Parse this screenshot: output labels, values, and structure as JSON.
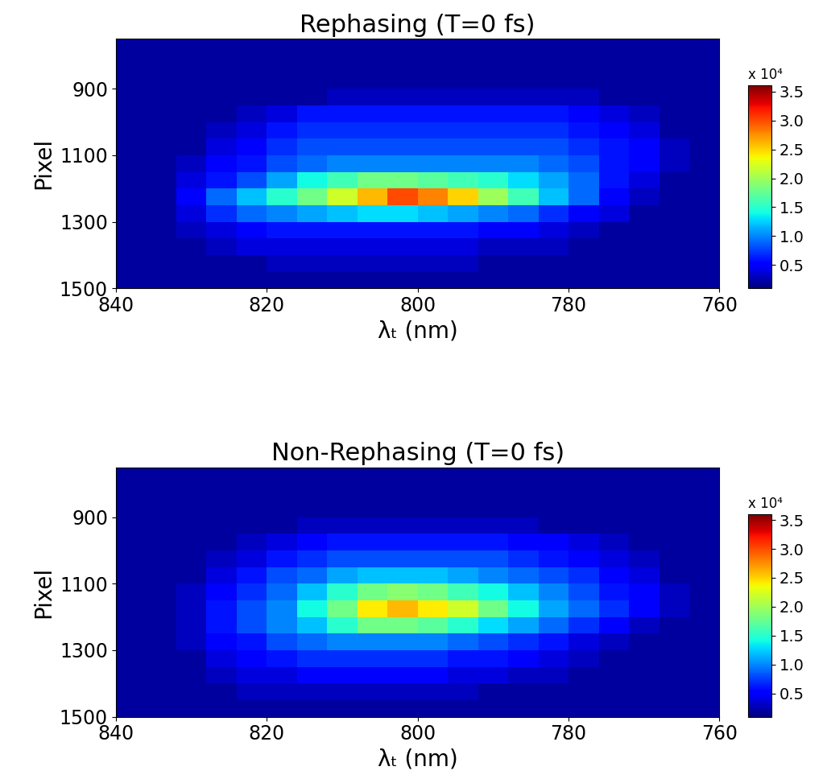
{
  "chart_data": [
    {
      "type": "heatmap",
      "title": "Rephasing (T=0 fs)",
      "x_label": "λₜ (nm)",
      "y_label": "Pixel",
      "xlim": [
        840,
        760
      ],
      "ylim": [
        1500,
        750
      ],
      "xticks": [
        840,
        820,
        800,
        780,
        760
      ],
      "yticks": [
        900,
        1100,
        1300,
        1500
      ],
      "x_edges": [
        840,
        836,
        832,
        828,
        824,
        820,
        816,
        812,
        808,
        804,
        800,
        796,
        792,
        788,
        784,
        780,
        776,
        772,
        768,
        764,
        760
      ],
      "y_edges": [
        750,
        800,
        850,
        900,
        950,
        1000,
        1050,
        1100,
        1150,
        1200,
        1250,
        1300,
        1350,
        1400,
        1450,
        1500
      ],
      "cells": [
        [
          0.2,
          0.2,
          0.2,
          0.2,
          0.2,
          0.2,
          0.2,
          0.2,
          0.2,
          0.2,
          0.2,
          0.2,
          0.2,
          0.2,
          0.2,
          0.2,
          0.2,
          0.2,
          0.2,
          0.2
        ],
        [
          0.2,
          0.2,
          0.2,
          0.2,
          0.2,
          0.2,
          0.2,
          0.2,
          0.2,
          0.2,
          0.2,
          0.2,
          0.2,
          0.2,
          0.2,
          0.2,
          0.2,
          0.2,
          0.2,
          0.2
        ],
        [
          0.2,
          0.2,
          0.2,
          0.2,
          0.2,
          0.2,
          0.2,
          0.2,
          0.2,
          0.2,
          0.2,
          0.2,
          0.2,
          0.2,
          0.2,
          0.2,
          0.2,
          0.2,
          0.2,
          0.2
        ],
        [
          0.2,
          0.2,
          0.2,
          0.2,
          0.2,
          0.2,
          0.2,
          0.3,
          0.3,
          0.3,
          0.3,
          0.3,
          0.3,
          0.3,
          0.3,
          0.3,
          0.2,
          0.2,
          0.2,
          0.2
        ],
        [
          0.2,
          0.2,
          0.2,
          0.2,
          0.3,
          0.4,
          0.6,
          0.6,
          0.6,
          0.6,
          0.6,
          0.6,
          0.6,
          0.6,
          0.6,
          0.5,
          0.4,
          0.3,
          0.2,
          0.2
        ],
        [
          0.2,
          0.2,
          0.2,
          0.3,
          0.4,
          0.6,
          0.7,
          0.7,
          0.7,
          0.7,
          0.7,
          0.7,
          0.7,
          0.7,
          0.7,
          0.6,
          0.5,
          0.4,
          0.2,
          0.2
        ],
        [
          0.2,
          0.2,
          0.2,
          0.4,
          0.5,
          0.7,
          0.8,
          0.8,
          0.8,
          0.8,
          0.8,
          0.8,
          0.8,
          0.8,
          0.8,
          0.7,
          0.6,
          0.5,
          0.3,
          0.2
        ],
        [
          0.2,
          0.2,
          0.3,
          0.5,
          0.6,
          0.8,
          0.9,
          1.0,
          1.0,
          1.0,
          1.0,
          1.0,
          1.0,
          1.0,
          0.9,
          0.8,
          0.6,
          0.5,
          0.3,
          0.2
        ],
        [
          0.2,
          0.2,
          0.4,
          0.6,
          0.8,
          1.1,
          1.4,
          1.6,
          1.8,
          1.8,
          1.7,
          1.6,
          1.5,
          1.3,
          1.1,
          0.9,
          0.6,
          0.4,
          0.2,
          0.2
        ],
        [
          0.2,
          0.2,
          0.5,
          0.9,
          1.2,
          1.5,
          1.8,
          2.2,
          2.6,
          3.0,
          2.8,
          2.5,
          2.0,
          1.6,
          1.2,
          0.9,
          0.5,
          0.3,
          0.2,
          0.2
        ],
        [
          0.2,
          0.2,
          0.4,
          0.7,
          0.9,
          1.0,
          1.1,
          1.2,
          1.3,
          1.3,
          1.2,
          1.1,
          1.0,
          0.9,
          0.7,
          0.5,
          0.4,
          0.2,
          0.2,
          0.2
        ],
        [
          0.2,
          0.2,
          0.3,
          0.4,
          0.5,
          0.6,
          0.6,
          0.6,
          0.6,
          0.6,
          0.6,
          0.6,
          0.5,
          0.5,
          0.4,
          0.3,
          0.2,
          0.2,
          0.2,
          0.2
        ],
        [
          0.2,
          0.2,
          0.2,
          0.3,
          0.4,
          0.4,
          0.4,
          0.4,
          0.4,
          0.4,
          0.4,
          0.4,
          0.3,
          0.3,
          0.3,
          0.2,
          0.2,
          0.2,
          0.2,
          0.2
        ],
        [
          0.2,
          0.2,
          0.2,
          0.2,
          0.2,
          0.3,
          0.3,
          0.3,
          0.3,
          0.3,
          0.3,
          0.3,
          0.2,
          0.2,
          0.2,
          0.2,
          0.2,
          0.2,
          0.2,
          0.2
        ],
        [
          0.2,
          0.2,
          0.2,
          0.2,
          0.2,
          0.2,
          0.2,
          0.2,
          0.2,
          0.2,
          0.2,
          0.2,
          0.2,
          0.2,
          0.2,
          0.2,
          0.2,
          0.2,
          0.2,
          0.2
        ]
      ],
      "colorbar_range": [
        0.1,
        3.6
      ],
      "colorbar_ticks": [
        0.5,
        {
          "value": 1,
          "label": "1.0"
        },
        1.5,
        {
          "value": 2,
          "label": "2.0"
        },
        2.5,
        {
          "value": 3,
          "label": "3.0"
        },
        3.5
      ],
      "colorbar_label": "x 10⁴"
    },
    {
      "type": "heatmap",
      "title": "Non-Rephasing (T=0 fs)",
      "x_label": "λₜ (nm)",
      "y_label": "Pixel",
      "xlim": [
        840,
        760
      ],
      "ylim": [
        1500,
        750
      ],
      "xticks": [
        840,
        820,
        800,
        780,
        760
      ],
      "yticks": [
        900,
        1100,
        1300,
        1500
      ],
      "x_edges": [
        840,
        836,
        832,
        828,
        824,
        820,
        816,
        812,
        808,
        804,
        800,
        796,
        792,
        788,
        784,
        780,
        776,
        772,
        768,
        764,
        760
      ],
      "y_edges": [
        750,
        800,
        850,
        900,
        950,
        1000,
        1050,
        1100,
        1150,
        1200,
        1250,
        1300,
        1350,
        1400,
        1450,
        1500
      ],
      "cells": [
        [
          0.2,
          0.2,
          0.2,
          0.2,
          0.2,
          0.2,
          0.2,
          0.2,
          0.2,
          0.2,
          0.2,
          0.2,
          0.2,
          0.2,
          0.2,
          0.2,
          0.2,
          0.2,
          0.2,
          0.2
        ],
        [
          0.2,
          0.2,
          0.2,
          0.2,
          0.2,
          0.2,
          0.2,
          0.2,
          0.2,
          0.2,
          0.2,
          0.2,
          0.2,
          0.2,
          0.2,
          0.2,
          0.2,
          0.2,
          0.2,
          0.2
        ],
        [
          0.2,
          0.2,
          0.2,
          0.2,
          0.2,
          0.2,
          0.2,
          0.2,
          0.2,
          0.2,
          0.2,
          0.2,
          0.2,
          0.2,
          0.2,
          0.2,
          0.2,
          0.2,
          0.2,
          0.2
        ],
        [
          0.2,
          0.2,
          0.2,
          0.2,
          0.2,
          0.2,
          0.3,
          0.3,
          0.3,
          0.3,
          0.3,
          0.3,
          0.3,
          0.3,
          0.2,
          0.2,
          0.2,
          0.2,
          0.2,
          0.2
        ],
        [
          0.2,
          0.2,
          0.2,
          0.2,
          0.3,
          0.4,
          0.5,
          0.6,
          0.6,
          0.6,
          0.6,
          0.6,
          0.6,
          0.5,
          0.5,
          0.4,
          0.3,
          0.2,
          0.2,
          0.2
        ],
        [
          0.2,
          0.2,
          0.2,
          0.3,
          0.4,
          0.6,
          0.7,
          0.8,
          0.8,
          0.8,
          0.8,
          0.8,
          0.8,
          0.7,
          0.6,
          0.5,
          0.4,
          0.3,
          0.2,
          0.2
        ],
        [
          0.2,
          0.2,
          0.2,
          0.4,
          0.6,
          0.8,
          0.9,
          1.1,
          1.2,
          1.2,
          1.2,
          1.1,
          1.0,
          0.9,
          0.8,
          0.7,
          0.5,
          0.4,
          0.2,
          0.2
        ],
        [
          0.2,
          0.2,
          0.3,
          0.5,
          0.7,
          0.9,
          1.2,
          1.5,
          1.8,
          1.9,
          1.8,
          1.6,
          1.4,
          1.2,
          1.0,
          0.8,
          0.6,
          0.5,
          0.3,
          0.2
        ],
        [
          0.2,
          0.2,
          0.3,
          0.6,
          0.8,
          1.0,
          1.4,
          1.8,
          2.4,
          2.6,
          2.4,
          2.2,
          1.8,
          1.4,
          1.1,
          0.9,
          0.7,
          0.5,
          0.3,
          0.2
        ],
        [
          0.2,
          0.2,
          0.3,
          0.6,
          0.8,
          1.0,
          1.2,
          1.5,
          1.8,
          1.8,
          1.7,
          1.5,
          1.3,
          1.1,
          0.9,
          0.7,
          0.5,
          0.3,
          0.2,
          0.2
        ],
        [
          0.2,
          0.2,
          0.3,
          0.5,
          0.6,
          0.8,
          0.9,
          1.0,
          1.0,
          1.0,
          1.0,
          0.9,
          0.8,
          0.7,
          0.6,
          0.4,
          0.3,
          0.2,
          0.2,
          0.2
        ],
        [
          0.2,
          0.2,
          0.2,
          0.4,
          0.5,
          0.6,
          0.7,
          0.7,
          0.7,
          0.7,
          0.7,
          0.6,
          0.6,
          0.5,
          0.4,
          0.3,
          0.2,
          0.2,
          0.2,
          0.2
        ],
        [
          0.2,
          0.2,
          0.2,
          0.3,
          0.4,
          0.4,
          0.5,
          0.5,
          0.5,
          0.5,
          0.5,
          0.4,
          0.4,
          0.3,
          0.3,
          0.2,
          0.2,
          0.2,
          0.2,
          0.2
        ],
        [
          0.2,
          0.2,
          0.2,
          0.2,
          0.3,
          0.3,
          0.3,
          0.3,
          0.3,
          0.3,
          0.3,
          0.3,
          0.2,
          0.2,
          0.2,
          0.2,
          0.2,
          0.2,
          0.2,
          0.2
        ],
        [
          0.2,
          0.2,
          0.2,
          0.2,
          0.2,
          0.2,
          0.2,
          0.2,
          0.2,
          0.2,
          0.2,
          0.2,
          0.2,
          0.2,
          0.2,
          0.2,
          0.2,
          0.2,
          0.2,
          0.2
        ]
      ],
      "colorbar_range": [
        0.1,
        3.6
      ],
      "colorbar_ticks": [
        0.5,
        {
          "value": 1,
          "label": "1.0"
        },
        1.5,
        {
          "value": 2,
          "label": "2.0"
        },
        2.5,
        {
          "value": 3,
          "label": "3.0"
        },
        3.5
      ],
      "colorbar_label": "x 10⁴"
    }
  ]
}
